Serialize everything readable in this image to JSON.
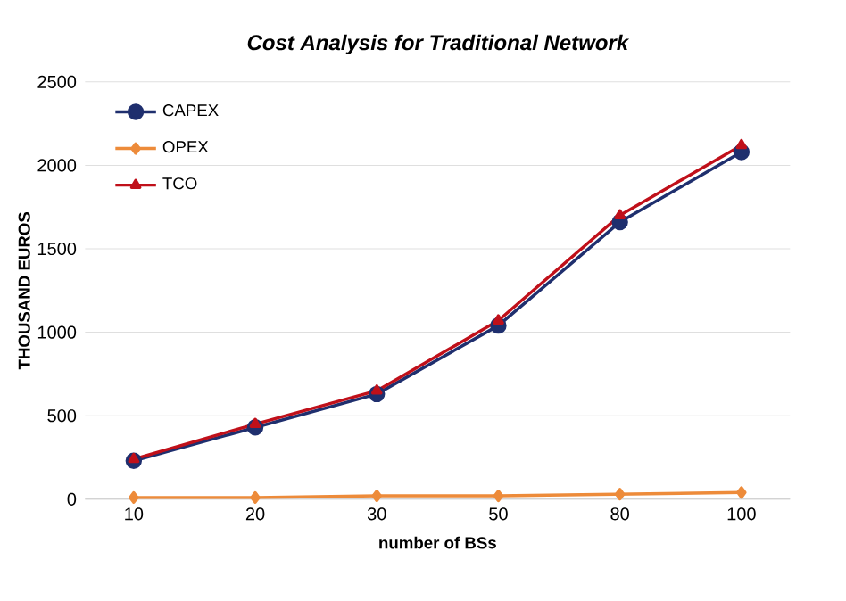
{
  "chart_data": {
    "type": "line",
    "title": "Cost Analysis for Traditional Network",
    "xlabel": "number of BSs",
    "ylabel": "THOUSAND EUROS",
    "categories": [
      "10",
      "20",
      "30",
      "50",
      "80",
      "100"
    ],
    "series": [
      {
        "name": "CAPEX",
        "color": "#1f2f6e",
        "marker": "circle",
        "values": [
          230,
          430,
          630,
          1040,
          1660,
          2080
        ]
      },
      {
        "name": "OPEX",
        "color": "#ed8b3a",
        "marker": "diamond",
        "values": [
          10,
          10,
          20,
          20,
          30,
          40
        ]
      },
      {
        "name": "TCO",
        "color": "#c0101a",
        "marker": "triangle",
        "values": [
          240,
          450,
          650,
          1070,
          1700,
          2120
        ]
      }
    ],
    "ylim": [
      0,
      2500
    ],
    "yticks": [
      0,
      500,
      1000,
      1500,
      2000,
      2500
    ],
    "grid": "y",
    "legend": "top left",
    "line_style": "solid"
  }
}
